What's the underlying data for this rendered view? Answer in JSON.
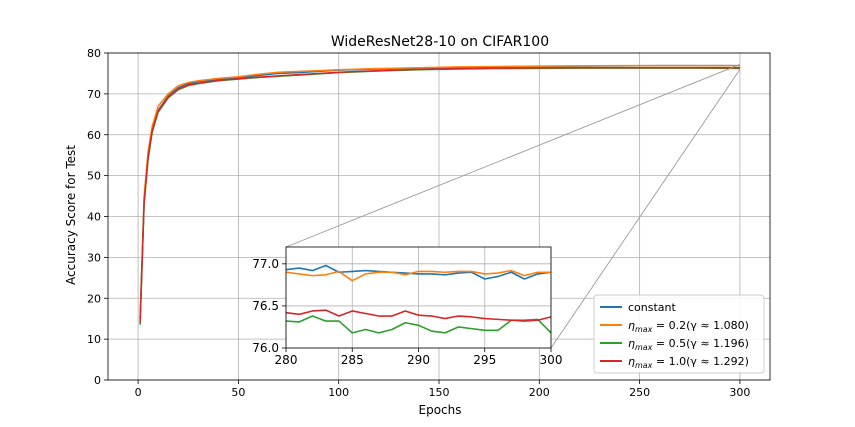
{
  "chart_data": {
    "type": "line",
    "title": "WideResNet28-10 on CIFAR100",
    "xlabel": "Epochs",
    "ylabel": "Accuracy Score for Test",
    "xlim": [
      -15,
      315
    ],
    "ylim": [
      0,
      80
    ],
    "xticks": [
      "0",
      "50",
      "100",
      "150",
      "200",
      "250",
      "300"
    ],
    "yticks": [
      "0",
      "10",
      "20",
      "30",
      "40",
      "50",
      "60",
      "70",
      "80"
    ],
    "grid": true,
    "legend_placement": "bottom-right",
    "legend": [
      "constant",
      "η_max = 0.2(γ ≈ 1.080)",
      "η_max = 0.5(γ ≈ 1.196)",
      "η_max = 1.0(γ ≈ 1.292)"
    ],
    "series": [
      {
        "name": "constant",
        "color": "#1f77b4",
        "x": [
          1,
          3,
          5,
          7,
          10,
          15,
          20,
          25,
          30,
          40,
          50,
          60,
          70,
          80,
          90,
          100,
          120,
          140,
          160,
          180,
          200,
          220,
          240,
          260,
          280,
          300
        ],
        "y": [
          15,
          44,
          55,
          61,
          66,
          69.5,
          71.5,
          72.5,
          73,
          73.5,
          74,
          74.5,
          75,
          75.2,
          75.5,
          75.8,
          76.1,
          76.3,
          76.5,
          76.6,
          76.7,
          76.8,
          76.85,
          76.9,
          76.9,
          76.9
        ]
      },
      {
        "name": "η_max = 0.2(γ ≈ 1.080)",
        "color": "#ff7f0e",
        "x": [
          1,
          3,
          5,
          7,
          10,
          15,
          20,
          25,
          30,
          40,
          50,
          60,
          70,
          80,
          90,
          100,
          120,
          140,
          160,
          180,
          200,
          220,
          240,
          260,
          280,
          300
        ],
        "y": [
          15,
          45,
          56,
          62,
          67,
          70,
          72,
          72.8,
          73.2,
          73.8,
          74.2,
          74.8,
          75.3,
          75.5,
          75.7,
          75.9,
          76.2,
          76.4,
          76.6,
          76.7,
          76.8,
          76.85,
          76.9,
          76.9,
          76.9,
          76.9
        ]
      },
      {
        "name": "η_max = 0.5(γ ≈ 1.196)",
        "color": "#2ca02c",
        "x": [
          1,
          3,
          5,
          7,
          10,
          15,
          20,
          25,
          30,
          40,
          50,
          60,
          70,
          80,
          90,
          100,
          120,
          140,
          160,
          180,
          200,
          220,
          240,
          260,
          280,
          300
        ],
        "y": [
          13.5,
          43,
          54,
          60.5,
          65.5,
          69,
          71,
          72,
          72.5,
          73.2,
          73.6,
          74,
          74.3,
          74.6,
          74.9,
          75.2,
          75.6,
          75.9,
          76.1,
          76.2,
          76.25,
          76.3,
          76.3,
          76.3,
          76.3,
          76.2
        ]
      },
      {
        "name": "η_max = 1.0(γ ≈ 1.292)",
        "color": "#d62728",
        "x": [
          1,
          3,
          5,
          7,
          10,
          15,
          20,
          25,
          30,
          40,
          50,
          60,
          70,
          80,
          90,
          100,
          120,
          140,
          160,
          180,
          200,
          220,
          240,
          260,
          280,
          300
        ],
        "y": [
          14,
          43.5,
          54.5,
          61,
          65.8,
          69.2,
          71.2,
          72.2,
          72.6,
          73.3,
          73.7,
          74.1,
          74.4,
          74.7,
          75,
          75.3,
          75.7,
          76,
          76.2,
          76.3,
          76.35,
          76.4,
          76.4,
          76.4,
          76.4,
          76.4
        ]
      }
    ],
    "inset": {
      "xlim": [
        280,
        300
      ],
      "ylim": [
        76.0,
        77.2
      ],
      "xticks": [
        "280",
        "285",
        "290",
        "295",
        "300"
      ],
      "yticks": [
        "76.0",
        "76.5",
        "77.0"
      ],
      "grid": true,
      "series": [
        {
          "name": "constant",
          "color": "#1f77b4",
          "x": [
            280,
            281,
            282,
            283,
            284,
            285,
            286,
            287,
            288,
            289,
            290,
            291,
            292,
            293,
            294,
            295,
            296,
            297,
            298,
            299,
            300
          ],
          "y": [
            76.93,
            76.95,
            76.92,
            76.98,
            76.9,
            76.91,
            76.92,
            76.91,
            76.9,
            76.89,
            76.88,
            76.88,
            76.87,
            76.89,
            76.9,
            76.82,
            76.85,
            76.9,
            76.82,
            76.88,
            76.9
          ]
        },
        {
          "name": "η_max = 0.2(γ ≈ 1.080)",
          "color": "#ff7f0e",
          "x": [
            280,
            281,
            282,
            283,
            284,
            285,
            286,
            287,
            288,
            289,
            290,
            291,
            292,
            293,
            294,
            295,
            296,
            297,
            298,
            299,
            300
          ],
          "y": [
            76.9,
            76.88,
            76.86,
            76.87,
            76.91,
            76.8,
            76.88,
            76.9,
            76.9,
            76.87,
            76.91,
            76.91,
            76.9,
            76.91,
            76.91,
            76.88,
            76.89,
            76.92,
            76.86,
            76.9,
            76.9
          ]
        },
        {
          "name": "η_max = 0.5(γ ≈ 1.196)",
          "color": "#2ca02c",
          "x": [
            280,
            281,
            282,
            283,
            284,
            285,
            286,
            287,
            288,
            289,
            290,
            291,
            292,
            293,
            294,
            295,
            296,
            297,
            298,
            299,
            300
          ],
          "y": [
            76.32,
            76.31,
            76.38,
            76.32,
            76.32,
            76.18,
            76.22,
            76.18,
            76.22,
            76.3,
            76.27,
            76.2,
            76.18,
            76.25,
            76.23,
            76.21,
            76.21,
            76.33,
            76.33,
            76.34,
            76.18
          ]
        },
        {
          "name": "η_max = 1.0(γ ≈ 1.292)",
          "color": "#d62728",
          "x": [
            280,
            281,
            282,
            283,
            284,
            285,
            286,
            287,
            288,
            289,
            290,
            291,
            292,
            293,
            294,
            295,
            296,
            297,
            298,
            299,
            300
          ],
          "y": [
            76.42,
            76.4,
            76.44,
            76.45,
            76.38,
            76.44,
            76.41,
            76.38,
            76.38,
            76.44,
            76.39,
            76.38,
            76.35,
            76.38,
            76.37,
            76.35,
            76.34,
            76.33,
            76.32,
            76.33,
            76.37
          ]
        }
      ]
    }
  }
}
